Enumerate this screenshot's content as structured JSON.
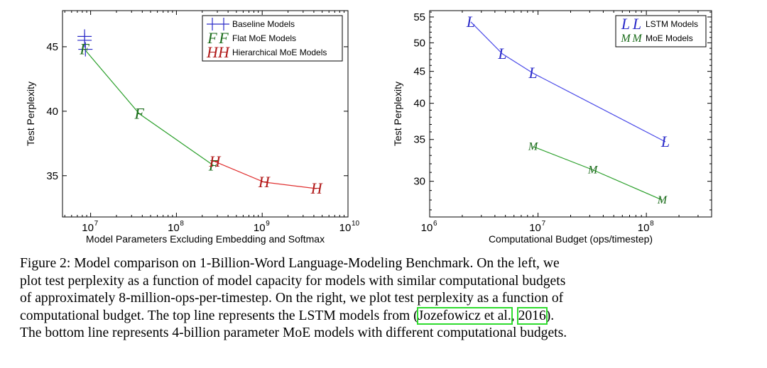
{
  "chart_data": [
    {
      "type": "line",
      "title": "",
      "xlabel": "Model Parameters Excluding Embedding and Softmax",
      "ylabel": "Test Perplexity",
      "xscale": "log",
      "xlim": [
        4700000,
        10000000000
      ],
      "ylim": [
        31.8,
        47.8
      ],
      "xticks": [
        10000000,
        100000000,
        1000000000,
        10000000000
      ],
      "xtick_base": [
        "10",
        "10",
        "10",
        "10"
      ],
      "xtick_exp": [
        "7",
        "8",
        "9",
        "10"
      ],
      "yticks": [
        35,
        40,
        45
      ],
      "ytick_labels": [
        "35",
        "40",
        "45"
      ],
      "legend_position": "top-right",
      "legend": [
        {
          "marker": "+",
          "name": "Baseline Models",
          "color": "#2a2ac8"
        },
        {
          "marker": "F",
          "name": "Flat MoE Models",
          "color": "#1a6b1a"
        },
        {
          "marker": "H",
          "name": "Hierarchical MoE Models",
          "color": "#b01818"
        }
      ],
      "series": [
        {
          "name": "Baseline Models",
          "marker": "+",
          "color": "#2a2ac8",
          "line": false,
          "x": [
            8500000,
            8500000,
            8700000
          ],
          "y": [
            45.8,
            45.5,
            44.8
          ]
        },
        {
          "name": "Flat MoE Models",
          "marker": "F",
          "color": "#1a6b1a",
          "line_color": "#2ca02c",
          "line": true,
          "x": [
            8500000,
            37000000,
            270000000
          ],
          "y": [
            44.8,
            39.8,
            35.8
          ]
        },
        {
          "name": "Hierarchical MoE Models",
          "marker": "H",
          "color": "#b01818",
          "line_color": "#e03030",
          "line": true,
          "x": [
            280000000,
            1050000000,
            4300000000
          ],
          "y": [
            36.1,
            34.5,
            34.0
          ]
        }
      ]
    },
    {
      "type": "line",
      "title": "",
      "xlabel": "Computational Budget (ops/timestep)",
      "ylabel": "Test Perplexity",
      "xscale": "log",
      "yscale": "log",
      "xlim": [
        1000000,
        400000000
      ],
      "ylim": [
        26.3,
        56.3
      ],
      "xticks": [
        1000000,
        10000000,
        100000000
      ],
      "xtick_base": [
        "10",
        "10",
        "10"
      ],
      "xtick_exp": [
        "6",
        "7",
        "8"
      ],
      "yticks": [
        30,
        35,
        40,
        45,
        50,
        55
      ],
      "ytick_labels": [
        "30",
        "35",
        "40",
        "45",
        "50",
        "55"
      ],
      "legend_position": "top-right",
      "legend": [
        {
          "marker": "L",
          "name": "LSTM Models",
          "color": "#2a2ac8"
        },
        {
          "marker": "M",
          "name": "MoE Models",
          "color": "#1a6b1a"
        }
      ],
      "series": [
        {
          "name": "LSTM Models",
          "marker": "L",
          "color": "#2a2ac8",
          "line_color": "#4a4ae8",
          "line": true,
          "x": [
            2400000,
            4700000,
            9000000,
            150000000
          ],
          "y": [
            54.0,
            48.0,
            44.7,
            34.7
          ]
        },
        {
          "name": "MoE Models",
          "marker": "M",
          "color": "#1a6b1a",
          "line_color": "#2ca02c",
          "line": true,
          "x": [
            9000000,
            32000000,
            140000000
          ],
          "y": [
            34.1,
            31.3,
            28.0
          ]
        }
      ]
    }
  ],
  "caption": {
    "lines": [
      {
        "parts": [
          {
            "text": "Figure 2: Model comparison on 1-Billion-Word Language-Modeling Benchmark. On the left, we",
            "cite": false
          }
        ]
      },
      {
        "parts": [
          {
            "text": "plot test perplexity as a function of model capacity for models with similar computational budgets",
            "cite": false
          }
        ]
      },
      {
        "parts": [
          {
            "text": "of approximately 8-million-ops-per-timestep. On the right, we plot test perplexity as a function of",
            "cite": false
          }
        ]
      },
      {
        "parts": [
          {
            "text": "computational budget. The top line represents the LSTM models from (",
            "cite": false
          },
          {
            "text": "Jozefowicz et al.",
            "cite": true
          },
          {
            "text": ", ",
            "cite": false
          },
          {
            "text": "2016",
            "cite": true
          },
          {
            "text": ").",
            "cite": false
          }
        ]
      },
      {
        "parts": [
          {
            "text": "The bottom line represents 4-billion parameter MoE models with different computational budgets.",
            "cite": false
          }
        ]
      }
    ]
  }
}
